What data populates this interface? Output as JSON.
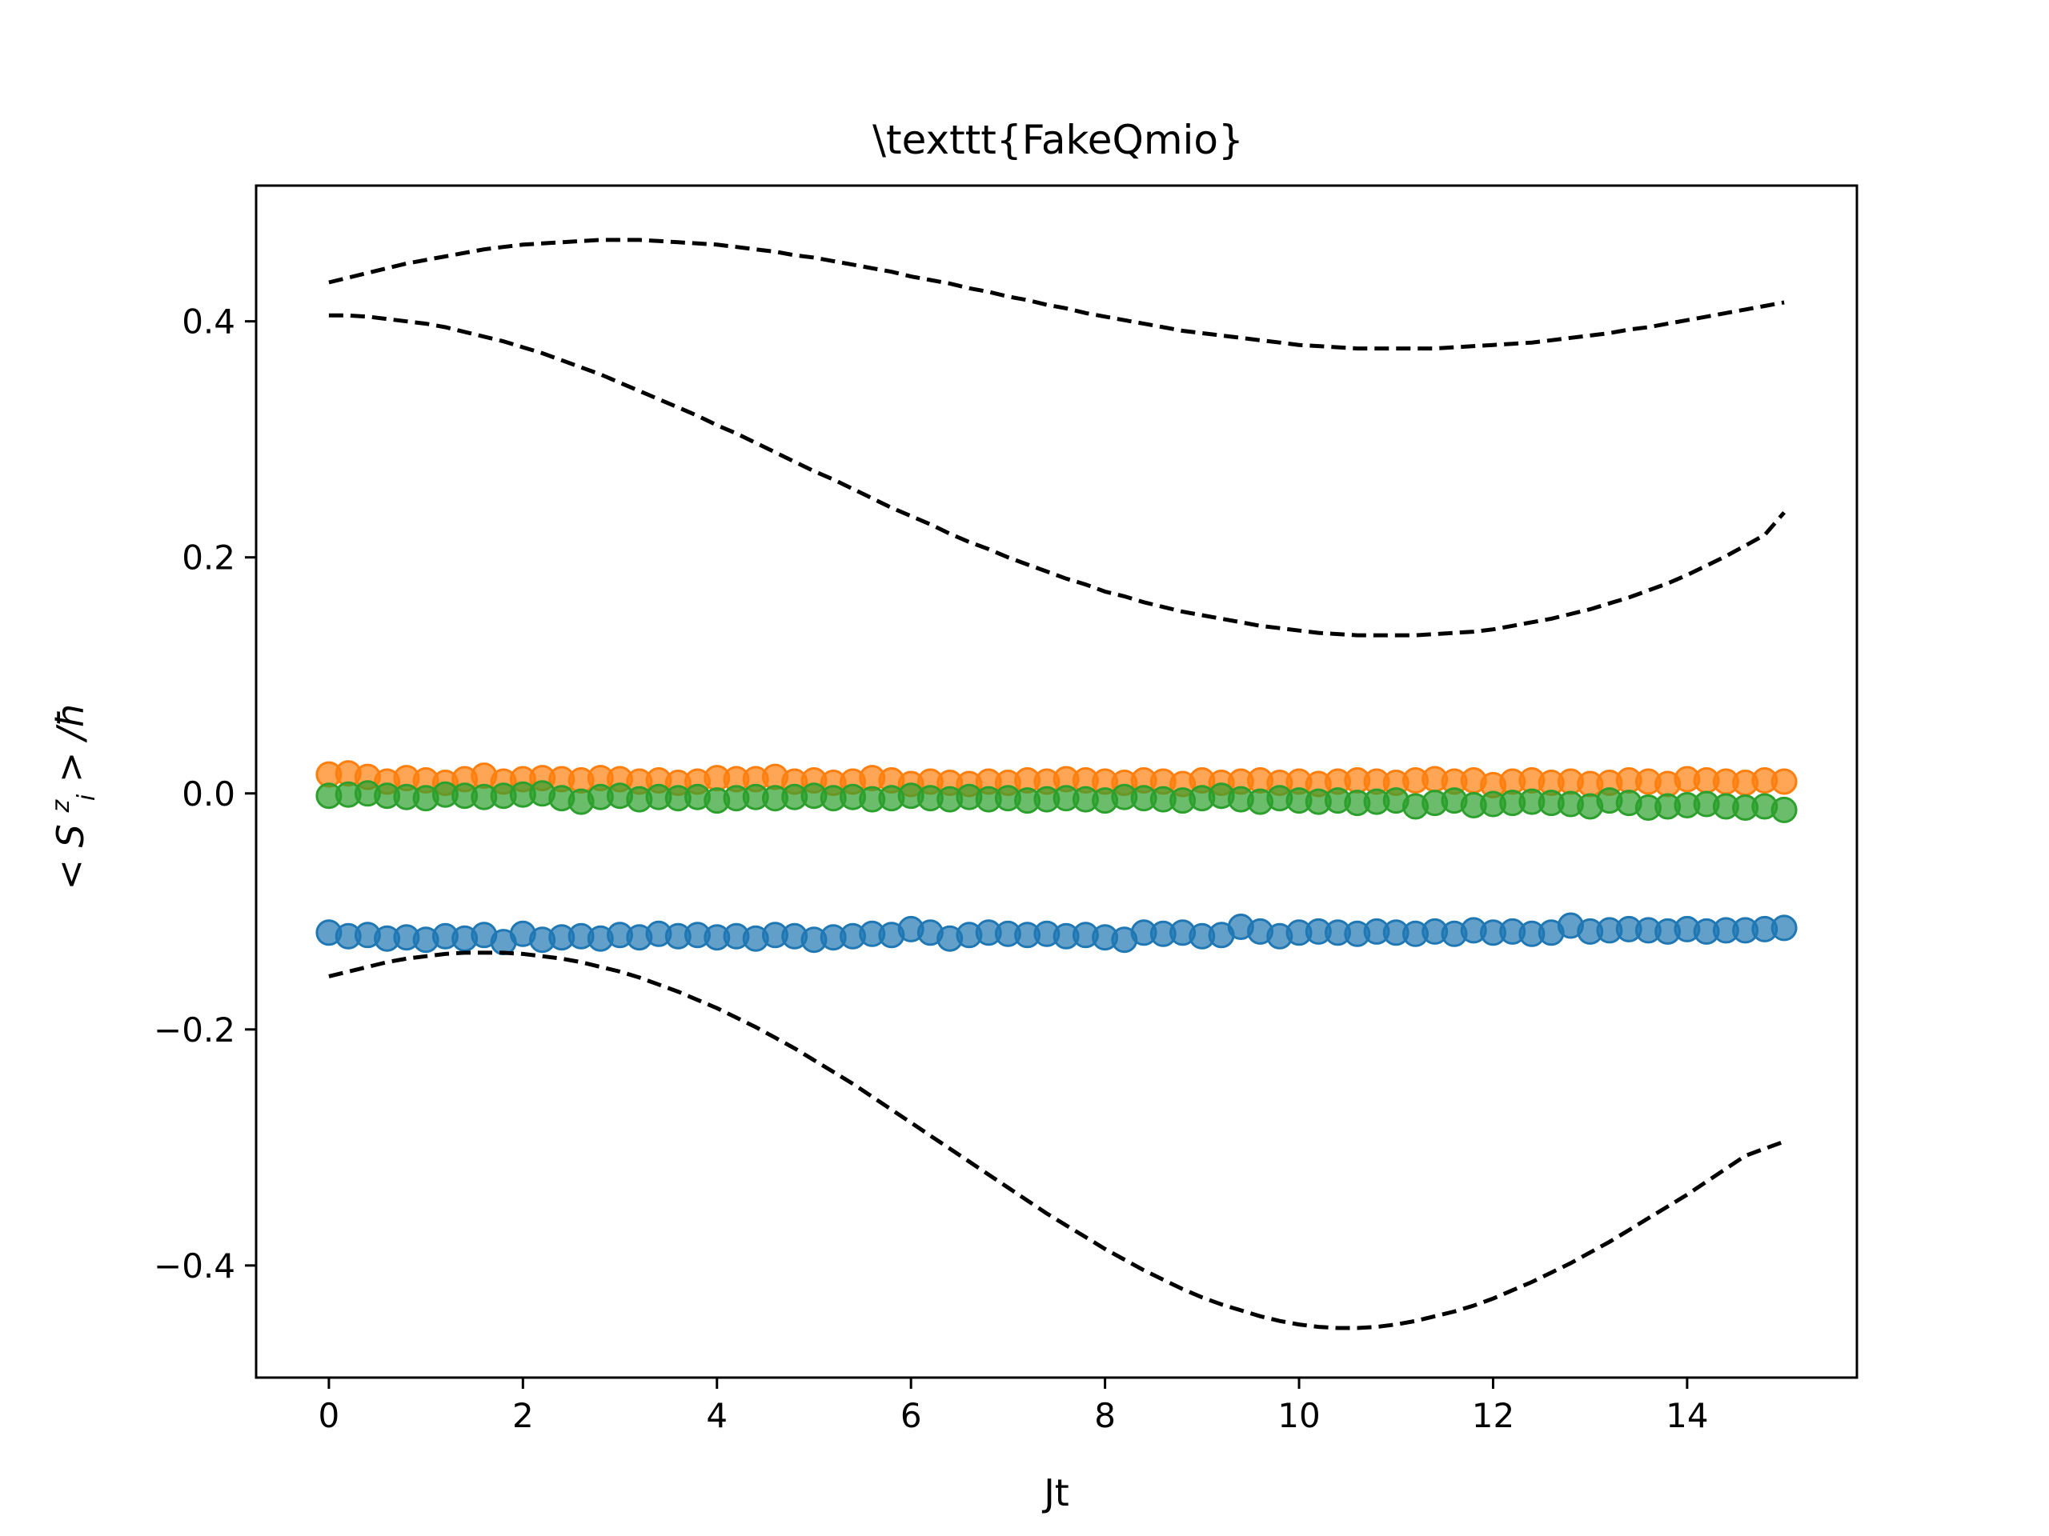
{
  "chart_data": {
    "type": "scatter",
    "title": "\\texttt{FakeQmio}",
    "xlabel": "Jt",
    "ylabel": "< S",
    "ylabel_sup": "z",
    "ylabel_sub": "i",
    "ylabel_tail": " > /ħ",
    "xlim": [
      -0.75,
      15.75
    ],
    "ylim": [
      -0.495,
      0.515
    ],
    "xticks": [
      0,
      2,
      4,
      6,
      8,
      10,
      12,
      14
    ],
    "xtick_labels": [
      "0",
      "2",
      "4",
      "6",
      "8",
      "10",
      "12",
      "14"
    ],
    "yticks": [
      -0.4,
      -0.2,
      0.0,
      0.2,
      0.4
    ],
    "ytick_labels": [
      "−0.4",
      "−0.2",
      "0.0",
      "0.2",
      "0.4"
    ],
    "grid": false,
    "colors": {
      "blue": "#1f77b4",
      "orange": "#ff7f0e",
      "green": "#2ca02c",
      "exact": "#000000"
    },
    "x_samples": [
      0.0,
      0.2,
      0.4,
      0.6,
      0.8,
      1.0,
      1.2,
      1.4,
      1.6,
      1.8,
      2.0,
      2.2,
      2.4,
      2.6,
      2.8,
      3.0,
      3.2,
      3.4,
      3.6,
      3.8,
      4.0,
      4.2,
      4.4,
      4.6,
      4.8,
      5.0,
      5.2,
      5.4,
      5.6,
      5.8,
      6.0,
      6.2,
      6.4,
      6.6,
      6.8,
      7.0,
      7.2,
      7.4,
      7.6,
      7.8,
      8.0,
      8.2,
      8.4,
      8.6,
      8.8,
      9.0,
      9.2,
      9.4,
      9.6,
      9.8,
      10.0,
      10.2,
      10.4,
      10.6,
      10.8,
      11.0,
      11.2,
      11.4,
      11.6,
      11.8,
      12.0,
      12.2,
      12.4,
      12.6,
      12.8,
      13.0,
      13.2,
      13.4,
      13.6,
      13.8,
      14.0,
      14.2,
      14.4,
      14.6,
      14.8,
      15.0
    ],
    "series": [
      {
        "color_key": "blue",
        "kind": "markers",
        "values": [
          -0.118,
          -0.121,
          -0.12,
          -0.123,
          -0.122,
          -0.124,
          -0.121,
          -0.123,
          -0.12,
          -0.126,
          -0.119,
          -0.124,
          -0.122,
          -0.121,
          -0.123,
          -0.12,
          -0.122,
          -0.119,
          -0.121,
          -0.12,
          -0.122,
          -0.121,
          -0.123,
          -0.12,
          -0.121,
          -0.124,
          -0.122,
          -0.121,
          -0.119,
          -0.12,
          -0.115,
          -0.118,
          -0.123,
          -0.12,
          -0.118,
          -0.119,
          -0.12,
          -0.119,
          -0.121,
          -0.12,
          -0.122,
          -0.124,
          -0.118,
          -0.119,
          -0.118,
          -0.121,
          -0.12,
          -0.113,
          -0.117,
          -0.121,
          -0.118,
          -0.117,
          -0.118,
          -0.119,
          -0.117,
          -0.118,
          -0.119,
          -0.117,
          -0.119,
          -0.116,
          -0.118,
          -0.117,
          -0.119,
          -0.118,
          -0.112,
          -0.117,
          -0.116,
          -0.115,
          -0.116,
          -0.117,
          -0.115,
          -0.117,
          -0.116,
          -0.116,
          -0.115,
          -0.114
        ]
      },
      {
        "color_key": "orange",
        "kind": "markers",
        "values": [
          0.016,
          0.017,
          0.014,
          0.01,
          0.013,
          0.011,
          0.009,
          0.012,
          0.015,
          0.01,
          0.012,
          0.013,
          0.012,
          0.011,
          0.013,
          0.012,
          0.01,
          0.011,
          0.009,
          0.01,
          0.013,
          0.012,
          0.012,
          0.014,
          0.01,
          0.011,
          0.009,
          0.01,
          0.013,
          0.011,
          0.008,
          0.01,
          0.009,
          0.008,
          0.01,
          0.009,
          0.011,
          0.01,
          0.012,
          0.011,
          0.01,
          0.009,
          0.011,
          0.01,
          0.008,
          0.011,
          0.009,
          0.01,
          0.011,
          0.009,
          0.01,
          0.008,
          0.01,
          0.011,
          0.01,
          0.009,
          0.011,
          0.012,
          0.01,
          0.011,
          0.007,
          0.01,
          0.011,
          0.009,
          0.01,
          0.008,
          0.009,
          0.011,
          0.01,
          0.008,
          0.012,
          0.011,
          0.01,
          0.009,
          0.011,
          0.01
        ]
      },
      {
        "color_key": "green",
        "kind": "markers",
        "values": [
          -0.002,
          -0.001,
          0.0,
          -0.002,
          -0.003,
          -0.004,
          -0.001,
          -0.002,
          -0.003,
          -0.002,
          -0.001,
          0.0,
          -0.004,
          -0.007,
          -0.003,
          -0.002,
          -0.005,
          -0.003,
          -0.004,
          -0.003,
          -0.006,
          -0.004,
          -0.003,
          -0.004,
          -0.003,
          -0.002,
          -0.004,
          -0.003,
          -0.005,
          -0.004,
          -0.002,
          -0.004,
          -0.005,
          -0.003,
          -0.005,
          -0.004,
          -0.006,
          -0.005,
          -0.004,
          -0.005,
          -0.006,
          -0.003,
          -0.004,
          -0.005,
          -0.006,
          -0.004,
          -0.002,
          -0.005,
          -0.007,
          -0.004,
          -0.006,
          -0.007,
          -0.006,
          -0.008,
          -0.007,
          -0.006,
          -0.011,
          -0.008,
          -0.006,
          -0.01,
          -0.009,
          -0.008,
          -0.007,
          -0.008,
          -0.009,
          -0.011,
          -0.006,
          -0.008,
          -0.012,
          -0.011,
          -0.01,
          -0.009,
          -0.011,
          -0.012,
          -0.011,
          -0.014
        ]
      },
      {
        "color_key": "exact",
        "kind": "dashed",
        "values": [
          0.433,
          0.437,
          0.441,
          0.445,
          0.449,
          0.452,
          0.455,
          0.458,
          0.461,
          0.463,
          0.465,
          0.466,
          0.467,
          0.468,
          0.469,
          0.469,
          0.469,
          0.468,
          0.467,
          0.466,
          0.465,
          0.463,
          0.461,
          0.459,
          0.456,
          0.454,
          0.451,
          0.448,
          0.445,
          0.442,
          0.438,
          0.435,
          0.432,
          0.428,
          0.425,
          0.421,
          0.418,
          0.414,
          0.411,
          0.407,
          0.404,
          0.401,
          0.398,
          0.395,
          0.392,
          0.39,
          0.388,
          0.386,
          0.384,
          0.382,
          0.38,
          0.379,
          0.378,
          0.377,
          0.377,
          0.377,
          0.377,
          0.377,
          0.378,
          0.379,
          0.38,
          0.381,
          0.382,
          0.384,
          0.386,
          0.388,
          0.39,
          0.393,
          0.395,
          0.398,
          0.401,
          0.404,
          0.407,
          0.41,
          0.413,
          0.416
        ]
      },
      {
        "color_key": "exact",
        "kind": "dashed",
        "values": [
          0.405,
          0.405,
          0.404,
          0.402,
          0.4,
          0.398,
          0.395,
          0.391,
          0.387,
          0.383,
          0.378,
          0.373,
          0.367,
          0.361,
          0.355,
          0.348,
          0.341,
          0.334,
          0.327,
          0.32,
          0.312,
          0.305,
          0.297,
          0.289,
          0.281,
          0.273,
          0.266,
          0.258,
          0.25,
          0.242,
          0.235,
          0.228,
          0.22,
          0.213,
          0.207,
          0.2,
          0.194,
          0.188,
          0.182,
          0.177,
          0.171,
          0.167,
          0.162,
          0.158,
          0.154,
          0.151,
          0.148,
          0.145,
          0.142,
          0.14,
          0.138,
          0.136,
          0.135,
          0.134,
          0.134,
          0.134,
          0.134,
          0.135,
          0.136,
          0.137,
          0.139,
          0.142,
          0.145,
          0.148,
          0.152,
          0.156,
          0.161,
          0.166,
          0.172,
          0.178,
          0.185,
          0.193,
          0.201,
          0.21,
          0.219,
          0.238
        ]
      },
      {
        "color_key": "exact",
        "kind": "dashed",
        "values": [
          -0.155,
          -0.151,
          -0.147,
          -0.143,
          -0.14,
          -0.138,
          -0.136,
          -0.135,
          -0.135,
          -0.135,
          -0.136,
          -0.138,
          -0.14,
          -0.143,
          -0.147,
          -0.151,
          -0.156,
          -0.162,
          -0.168,
          -0.175,
          -0.182,
          -0.19,
          -0.198,
          -0.207,
          -0.216,
          -0.226,
          -0.236,
          -0.246,
          -0.257,
          -0.268,
          -0.279,
          -0.29,
          -0.301,
          -0.312,
          -0.323,
          -0.334,
          -0.345,
          -0.356,
          -0.366,
          -0.376,
          -0.386,
          -0.395,
          -0.404,
          -0.412,
          -0.42,
          -0.427,
          -0.433,
          -0.438,
          -0.443,
          -0.447,
          -0.45,
          -0.452,
          -0.453,
          -0.453,
          -0.452,
          -0.45,
          -0.447,
          -0.443,
          -0.439,
          -0.434,
          -0.428,
          -0.421,
          -0.414,
          -0.406,
          -0.398,
          -0.389,
          -0.38,
          -0.37,
          -0.36,
          -0.35,
          -0.34,
          -0.329,
          -0.318,
          -0.307,
          -0.301,
          -0.295
        ]
      }
    ]
  }
}
